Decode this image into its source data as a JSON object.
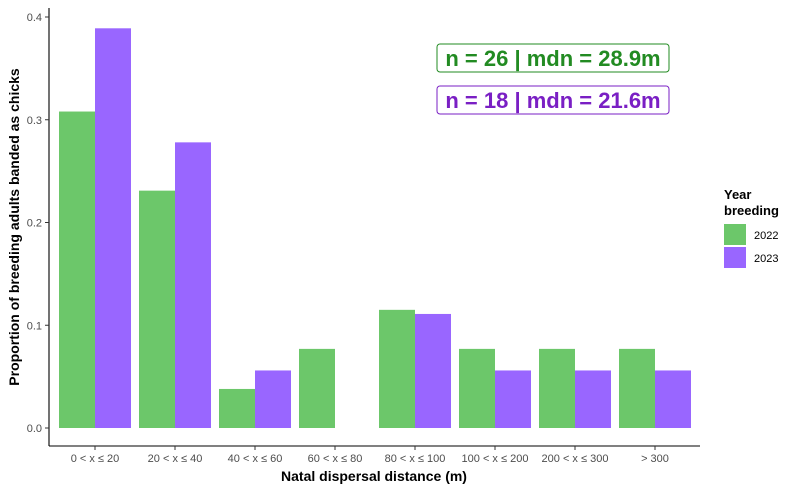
{
  "chart_data": {
    "type": "bar",
    "xlabel": "Natal dispersal distance (m)",
    "ylabel": "Proportion of breeding adults banded as chicks",
    "ylim": [
      0,
      0.4
    ],
    "yticks": [
      "0.0",
      "0.1",
      "0.2",
      "0.3",
      "0.4"
    ],
    "grid": false,
    "categories": [
      "0 < x ≤ 20",
      "20 < x ≤ 40",
      "40 < x ≤ 60",
      "60 < x ≤ 80",
      "80 < x ≤ 100",
      "100 < x ≤ 200",
      "200 < x ≤ 300",
      "> 300"
    ],
    "series": [
      {
        "name": "2022",
        "color": "#6cc76a",
        "values": [
          0.308,
          0.231,
          0.038,
          0.077,
          0.115,
          0.077,
          0.077,
          0.077
        ]
      },
      {
        "name": "2023",
        "color": "#9966ff",
        "values": [
          0.389,
          0.278,
          0.056,
          0.0,
          0.111,
          0.056,
          0.056,
          0.056
        ]
      }
    ],
    "legend": {
      "title_line1": "Year",
      "title_line2": "breeding",
      "placement": "right"
    },
    "annotations": [
      {
        "text": "n = 26 | mdn = 28.9m",
        "color": "#228b22"
      },
      {
        "text": "n = 18 | mdn = 21.6m",
        "color": "#7a1fc4"
      }
    ]
  }
}
